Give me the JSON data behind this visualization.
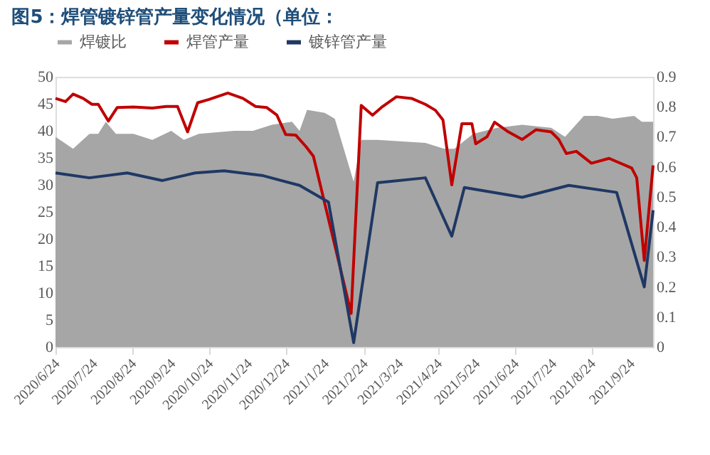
{
  "chart_data": {
    "type": "line",
    "title": "图5：焊管镀锌管产量变化情况（单位：",
    "legend": "top",
    "xlim": [
      "2020-06-24",
      "2021-10-12"
    ],
    "xticks": [
      {
        "value": "2020-06-24",
        "label": "2020/6/24"
      },
      {
        "value": "2020-07-24",
        "label": "2020/7/24"
      },
      {
        "value": "2020-08-24",
        "label": "2020/8/24"
      },
      {
        "value": "2020-09-24",
        "label": "2020/9/24"
      },
      {
        "value": "2020-10-24",
        "label": "2020/10/24"
      },
      {
        "value": "2020-11-24",
        "label": "2020/11/24"
      },
      {
        "value": "2020-12-24",
        "label": "2020/12/24"
      },
      {
        "value": "2021-01-24",
        "label": "2021/1/24"
      },
      {
        "value": "2021-02-24",
        "label": "2021/2/24"
      },
      {
        "value": "2021-03-24",
        "label": "2021/3/24"
      },
      {
        "value": "2021-04-24",
        "label": "2021/4/24"
      },
      {
        "value": "2021-05-24",
        "label": "2021/5/24"
      },
      {
        "value": "2021-06-24",
        "label": "2021/6/24"
      },
      {
        "value": "2021-07-24",
        "label": "2021/7/24"
      },
      {
        "value": "2021-08-24",
        "label": "2021/8/24"
      },
      {
        "value": "2021-09-24",
        "label": "2021/9/24"
      }
    ],
    "ylim": [
      0,
      50
    ],
    "yticks": [
      0,
      5,
      10,
      15,
      20,
      25,
      30,
      35,
      40,
      45,
      50
    ],
    "y2lim": [
      0,
      0.9
    ],
    "y2ticks": [
      0,
      0.1,
      0.2,
      0.3,
      0.4,
      0.5,
      0.6,
      0.7,
      0.8,
      0.9
    ],
    "grid": false,
    "series": [
      {
        "name": "焊镀比",
        "type": "area",
        "axis": "y2",
        "color": "#a6a6a6",
        "x": [
          "2020-06-24",
          "2020-07-08",
          "2020-07-21",
          "2020-07-28",
          "2020-08-03",
          "2020-08-11",
          "2020-08-25",
          "2020-09-09",
          "2020-09-24",
          "2020-10-04",
          "2020-10-16",
          "2020-11-13",
          "2020-11-28",
          "2020-12-13",
          "2020-12-29",
          "2021-01-04",
          "2021-01-10",
          "2021-01-24",
          "2021-02-01",
          "2021-02-16",
          "2021-02-22",
          "2021-03-07",
          "2021-04-14",
          "2021-04-29",
          "2021-05-07",
          "2021-05-22",
          "2021-06-10",
          "2021-06-30",
          "2021-07-23",
          "2021-08-03",
          "2021-08-18",
          "2021-08-29",
          "2021-09-10",
          "2021-09-27",
          "2021-10-03",
          "2021-10-12"
        ],
        "values": [
          0.7,
          0.66,
          0.71,
          0.71,
          0.75,
          0.71,
          0.71,
          0.69,
          0.72,
          0.69,
          0.71,
          0.72,
          0.72,
          0.74,
          0.75,
          0.72,
          0.79,
          0.78,
          0.76,
          0.55,
          0.69,
          0.69,
          0.68,
          0.66,
          0.66,
          0.71,
          0.73,
          0.74,
          0.73,
          0.7,
          0.77,
          0.77,
          0.76,
          0.77,
          0.75,
          0.75
        ]
      },
      {
        "name": "焊管产量",
        "color": "#c00000",
        "x": [
          "2020-06-24",
          "2020-07-02",
          "2020-07-08",
          "2020-07-16",
          "2020-07-23",
          "2020-07-28",
          "2020-08-05",
          "2020-08-12",
          "2020-08-25",
          "2020-09-09",
          "2020-09-20",
          "2020-09-29",
          "2020-10-07",
          "2020-10-15",
          "2020-10-24",
          "2020-11-08",
          "2020-11-20",
          "2020-11-30",
          "2020-12-09",
          "2020-12-17",
          "2020-12-24",
          "2021-01-01",
          "2021-01-09",
          "2021-01-15",
          "2021-02-14",
          "2021-02-22",
          "2021-03-03",
          "2021-03-11",
          "2021-03-22",
          "2021-04-03",
          "2021-04-14",
          "2021-04-22",
          "2021-04-28",
          "2021-05-05",
          "2021-05-13",
          "2021-05-21",
          "2021-05-24",
          "2021-06-02",
          "2021-06-08",
          "2021-06-19",
          "2021-06-30",
          "2021-07-11",
          "2021-07-23",
          "2021-07-29",
          "2021-08-04",
          "2021-08-12",
          "2021-08-24",
          "2021-09-07",
          "2021-09-25",
          "2021-09-29",
          "2021-10-05",
          "2021-10-12"
        ],
        "values": [
          46.0,
          45.4,
          46.8,
          46.0,
          44.9,
          44.9,
          41.8,
          44.3,
          44.4,
          44.2,
          44.5,
          44.5,
          39.8,
          45.2,
          45.8,
          47.0,
          46.0,
          44.5,
          44.3,
          42.9,
          39.3,
          39.2,
          37.1,
          35.3,
          6.2,
          44.7,
          42.9,
          44.5,
          46.3,
          46.0,
          44.9,
          43.8,
          42.0,
          30.0,
          41.3,
          41.3,
          37.6,
          38.9,
          41.6,
          39.8,
          38.4,
          40.2,
          39.8,
          38.4,
          35.8,
          36.2,
          34.0,
          34.9,
          33.1,
          31.3,
          16.0,
          33.6
        ]
      },
      {
        "name": "镀锌管产量",
        "color": "#1f3864",
        "x": [
          "2020-06-24",
          "2020-07-21",
          "2020-08-20",
          "2020-09-17",
          "2020-10-13",
          "2020-11-05",
          "2020-12-06",
          "2021-01-04",
          "2021-01-27",
          "2021-02-16",
          "2021-03-07",
          "2021-04-14",
          "2021-05-05",
          "2021-05-15",
          "2021-06-30",
          "2021-08-06",
          "2021-09-13",
          "2021-10-05",
          "2021-10-12"
        ],
        "values": [
          32.2,
          31.3,
          32.2,
          30.8,
          32.2,
          32.6,
          31.7,
          29.9,
          26.8,
          0.8,
          30.4,
          31.3,
          20.5,
          29.5,
          27.7,
          29.9,
          28.6,
          11.1,
          25.3
        ]
      }
    ]
  }
}
